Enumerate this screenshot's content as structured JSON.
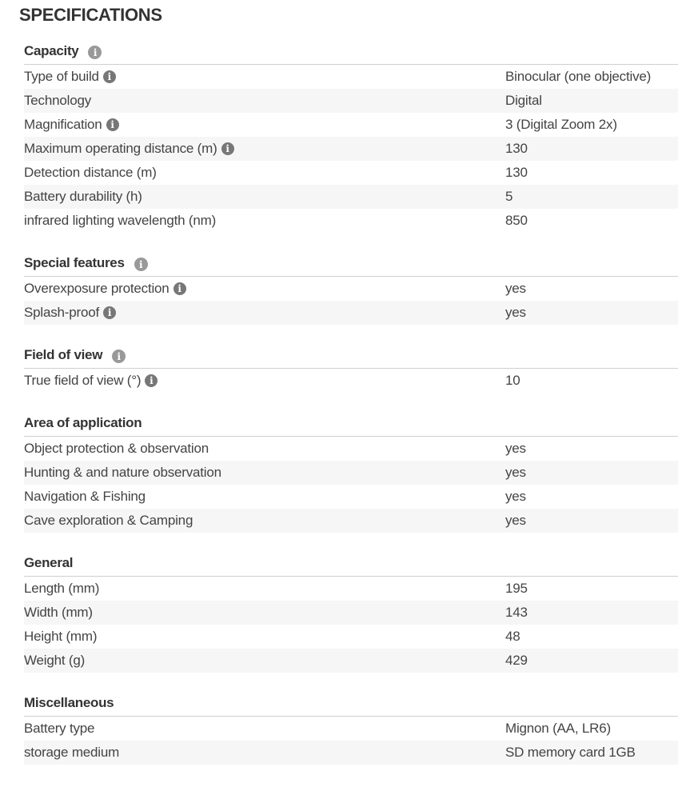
{
  "title": "SPECIFICATIONS",
  "info_icon_glyph": "i",
  "sections": [
    {
      "title": "Capacity",
      "info": true,
      "rows": [
        {
          "label": "Type of build",
          "info": true,
          "value": "Binocular (one objective)"
        },
        {
          "label": "Technology",
          "info": false,
          "value": "Digital"
        },
        {
          "label": "Magnification",
          "info": true,
          "value": "3 (Digital Zoom 2x)"
        },
        {
          "label": "Maximum operating distance (m)",
          "info": true,
          "value": "130"
        },
        {
          "label": "Detection distance (m)",
          "info": false,
          "value": "130"
        },
        {
          "label": "Battery durability (h)",
          "info": false,
          "value": "5"
        },
        {
          "label": "infrared lighting wavelength (nm)",
          "info": false,
          "value": "850"
        }
      ]
    },
    {
      "title": "Special features",
      "info": true,
      "rows": [
        {
          "label": "Overexposure protection",
          "info": true,
          "value": "yes"
        },
        {
          "label": "Splash-proof",
          "info": true,
          "value": "yes"
        }
      ]
    },
    {
      "title": "Field of view",
      "info": true,
      "rows": [
        {
          "label": "True field of view (°)",
          "info": true,
          "value": "10"
        }
      ]
    },
    {
      "title": "Area of application",
      "info": false,
      "rows": [
        {
          "label": "Object protection & observation",
          "info": false,
          "value": "yes"
        },
        {
          "label": "Hunting & and nature observation",
          "info": false,
          "value": "yes"
        },
        {
          "label": "Navigation & Fishing",
          "info": false,
          "value": "yes"
        },
        {
          "label": "Cave exploration & Camping",
          "info": false,
          "value": "yes"
        }
      ]
    },
    {
      "title": "General",
      "info": false,
      "rows": [
        {
          "label": "Length (mm)",
          "info": false,
          "value": "195"
        },
        {
          "label": "Width (mm)",
          "info": false,
          "value": "143"
        },
        {
          "label": "Height (mm)",
          "info": false,
          "value": "48"
        },
        {
          "label": "Weight (g)",
          "info": false,
          "value": "429"
        }
      ]
    },
    {
      "title": "Miscellaneous",
      "info": false,
      "rows": [
        {
          "label": "Battery type",
          "info": false,
          "value": "Mignon (AA, LR6)"
        },
        {
          "label": "storage medium",
          "info": false,
          "value": "SD memory card 1GB"
        }
      ]
    }
  ]
}
